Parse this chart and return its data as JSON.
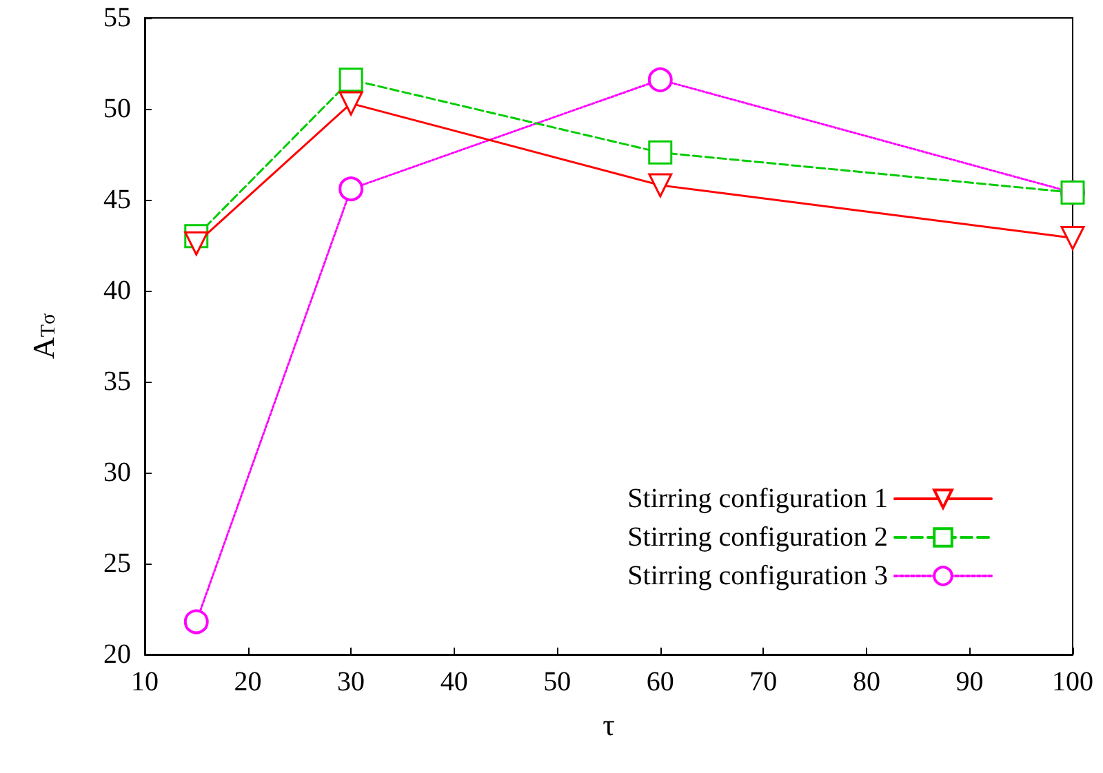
{
  "chart_data": {
    "type": "line",
    "xlabel": "τ",
    "ylabel": "A$_{Tσ}$",
    "x": [
      15,
      30,
      60,
      100
    ],
    "series": [
      {
        "name": "Stirring configuration 1",
        "color": "#ff0000",
        "values": [
          42.6,
          50.3,
          45.8,
          42.9
        ],
        "marker": "triangle",
        "line_style": "solid"
      },
      {
        "name": "Stirring configuration 2",
        "color": "#00cc00",
        "values": [
          43.0,
          51.6,
          47.6,
          45.4
        ],
        "marker": "square",
        "line_style": "dashed"
      },
      {
        "name": "Stirring configuration 3",
        "color": "#ff00ff",
        "values": [
          21.8,
          45.6,
          51.6,
          45.4
        ],
        "marker": "circle",
        "line_style": "dotted"
      }
    ],
    "xlim": [
      10,
      100
    ],
    "xticks": [
      10,
      20,
      30,
      40,
      50,
      60,
      70,
      80,
      90,
      100
    ],
    "ylim": [
      20,
      55
    ],
    "yticks": [
      20,
      25,
      30,
      35,
      40,
      45,
      50,
      55
    ],
    "grid": false,
    "legend": "bottom right"
  }
}
